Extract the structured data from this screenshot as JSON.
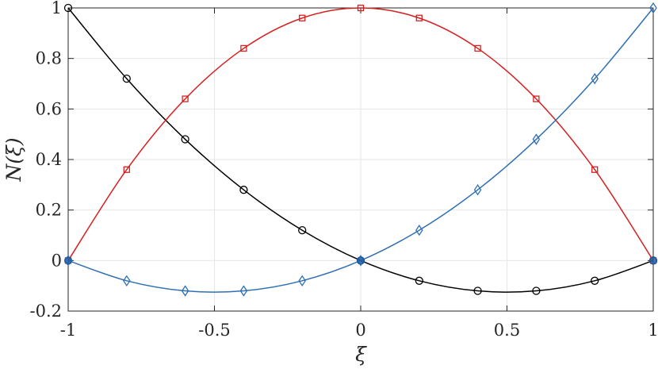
{
  "chart_data": {
    "type": "line",
    "title": "",
    "xlabel": "ξ",
    "ylabel": "N(ξ)",
    "xlim": [
      -1,
      1
    ],
    "ylim": [
      -0.2,
      1
    ],
    "x_ticks": [
      "-1",
      "-0.5",
      "0",
      "0.5",
      "1"
    ],
    "x_tick_values": [
      -1,
      -0.5,
      0,
      0.5,
      1
    ],
    "y_ticks": [
      "-0.2",
      "0",
      "0.2",
      "0.4",
      "0.6",
      "0.8",
      "1"
    ],
    "y_tick_values": [
      -0.2,
      0,
      0.2,
      0.4,
      0.6,
      0.8,
      1
    ],
    "grid": true,
    "series": [
      {
        "color": "#000000",
        "marker": "circle",
        "x": [
          -1,
          -0.8,
          -0.6,
          -0.4,
          -0.2,
          0,
          0.2,
          0.4,
          0.6,
          0.8,
          1
        ],
        "values": [
          1,
          0.72,
          0.48,
          0.28,
          0.12,
          0,
          -0.08,
          -0.12,
          -0.12,
          -0.08,
          0
        ]
      },
      {
        "color": "#d62020",
        "marker": "square",
        "x": [
          -1,
          -0.8,
          -0.6,
          -0.4,
          -0.2,
          0,
          0.2,
          0.4,
          0.6,
          0.8,
          1
        ],
        "values": [
          0,
          0.36,
          0.64,
          0.84,
          0.96,
          1,
          0.96,
          0.84,
          0.64,
          0.36,
          0
        ]
      },
      {
        "color": "#2f6fb3",
        "marker": "diamond",
        "x": [
          -1,
          -0.8,
          -0.6,
          -0.4,
          -0.2,
          0,
          0.2,
          0.4,
          0.6,
          0.8,
          1
        ],
        "values": [
          0,
          -0.08,
          -0.12,
          -0.12,
          -0.08,
          0,
          0.12,
          0.28,
          0.48,
          0.72,
          1
        ]
      }
    ],
    "nodes": {
      "color": "#1f5fa8",
      "x": [
        -1,
        0,
        1
      ],
      "values": [
        0,
        0,
        0
      ]
    }
  }
}
